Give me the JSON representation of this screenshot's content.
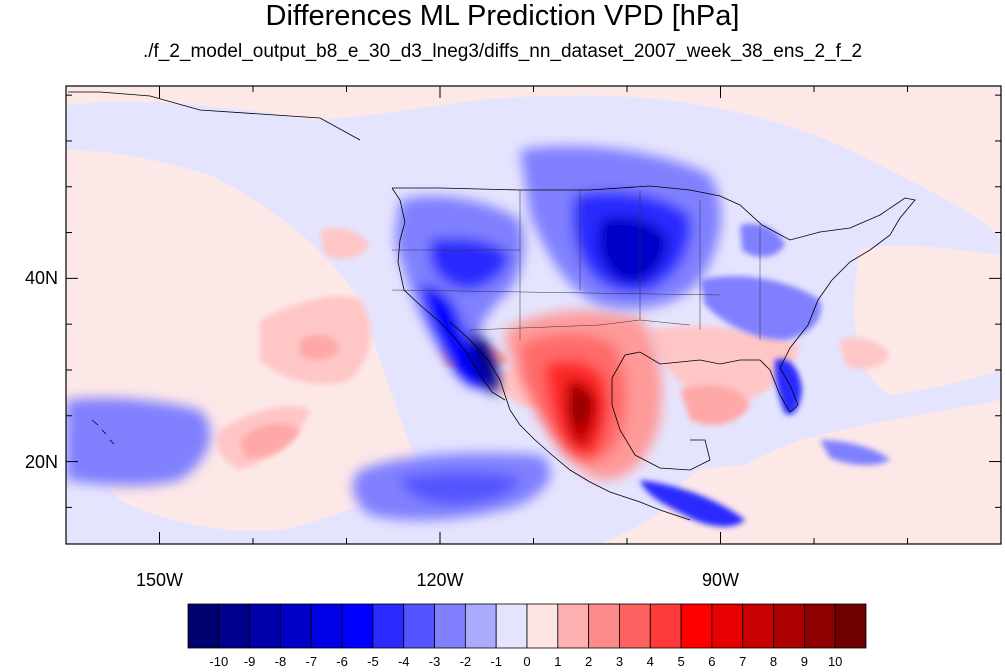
{
  "title": "Differences ML Prediction VPD [hPa]",
  "subtitle": "./f_2_model_output_b8_e_30_d3_lneg3/diffs_nn_dataset_2007_week_38_ens_2_f_2",
  "axes": {
    "lon_range": [
      -160,
      -60
    ],
    "lat_range": [
      11,
      61
    ],
    "lon_labels": [
      {
        "lon": -150,
        "text": "150W"
      },
      {
        "lon": -120,
        "text": "120W"
      },
      {
        "lon": -90,
        "text": "90W"
      }
    ],
    "lat_labels": [
      {
        "lat": 40,
        "text": "40N"
      },
      {
        "lat": 20,
        "text": "20N"
      }
    ]
  },
  "colorbar": {
    "levels": [
      "-10",
      "-9",
      "-8",
      "-7",
      "-6",
      "-5",
      "-4",
      "-3",
      "-2",
      "-1",
      "0",
      "1",
      "2",
      "3",
      "4",
      "5",
      "6",
      "7",
      "8",
      "9",
      "10"
    ],
    "colors": [
      "#00006e",
      "#00008c",
      "#0000aa",
      "#0000c8",
      "#0000e6",
      "#0000ff",
      "#2b2bff",
      "#5555ff",
      "#8080ff",
      "#aaaaff",
      "#e4e4ff",
      "#ffe4e4",
      "#ffb0b0",
      "#ff8a8a",
      "#ff6060",
      "#ff3a3a",
      "#ff0000",
      "#e60000",
      "#c80000",
      "#aa0000",
      "#8c0000",
      "#6e0000"
    ]
  },
  "background_color": "#fde8e8"
}
